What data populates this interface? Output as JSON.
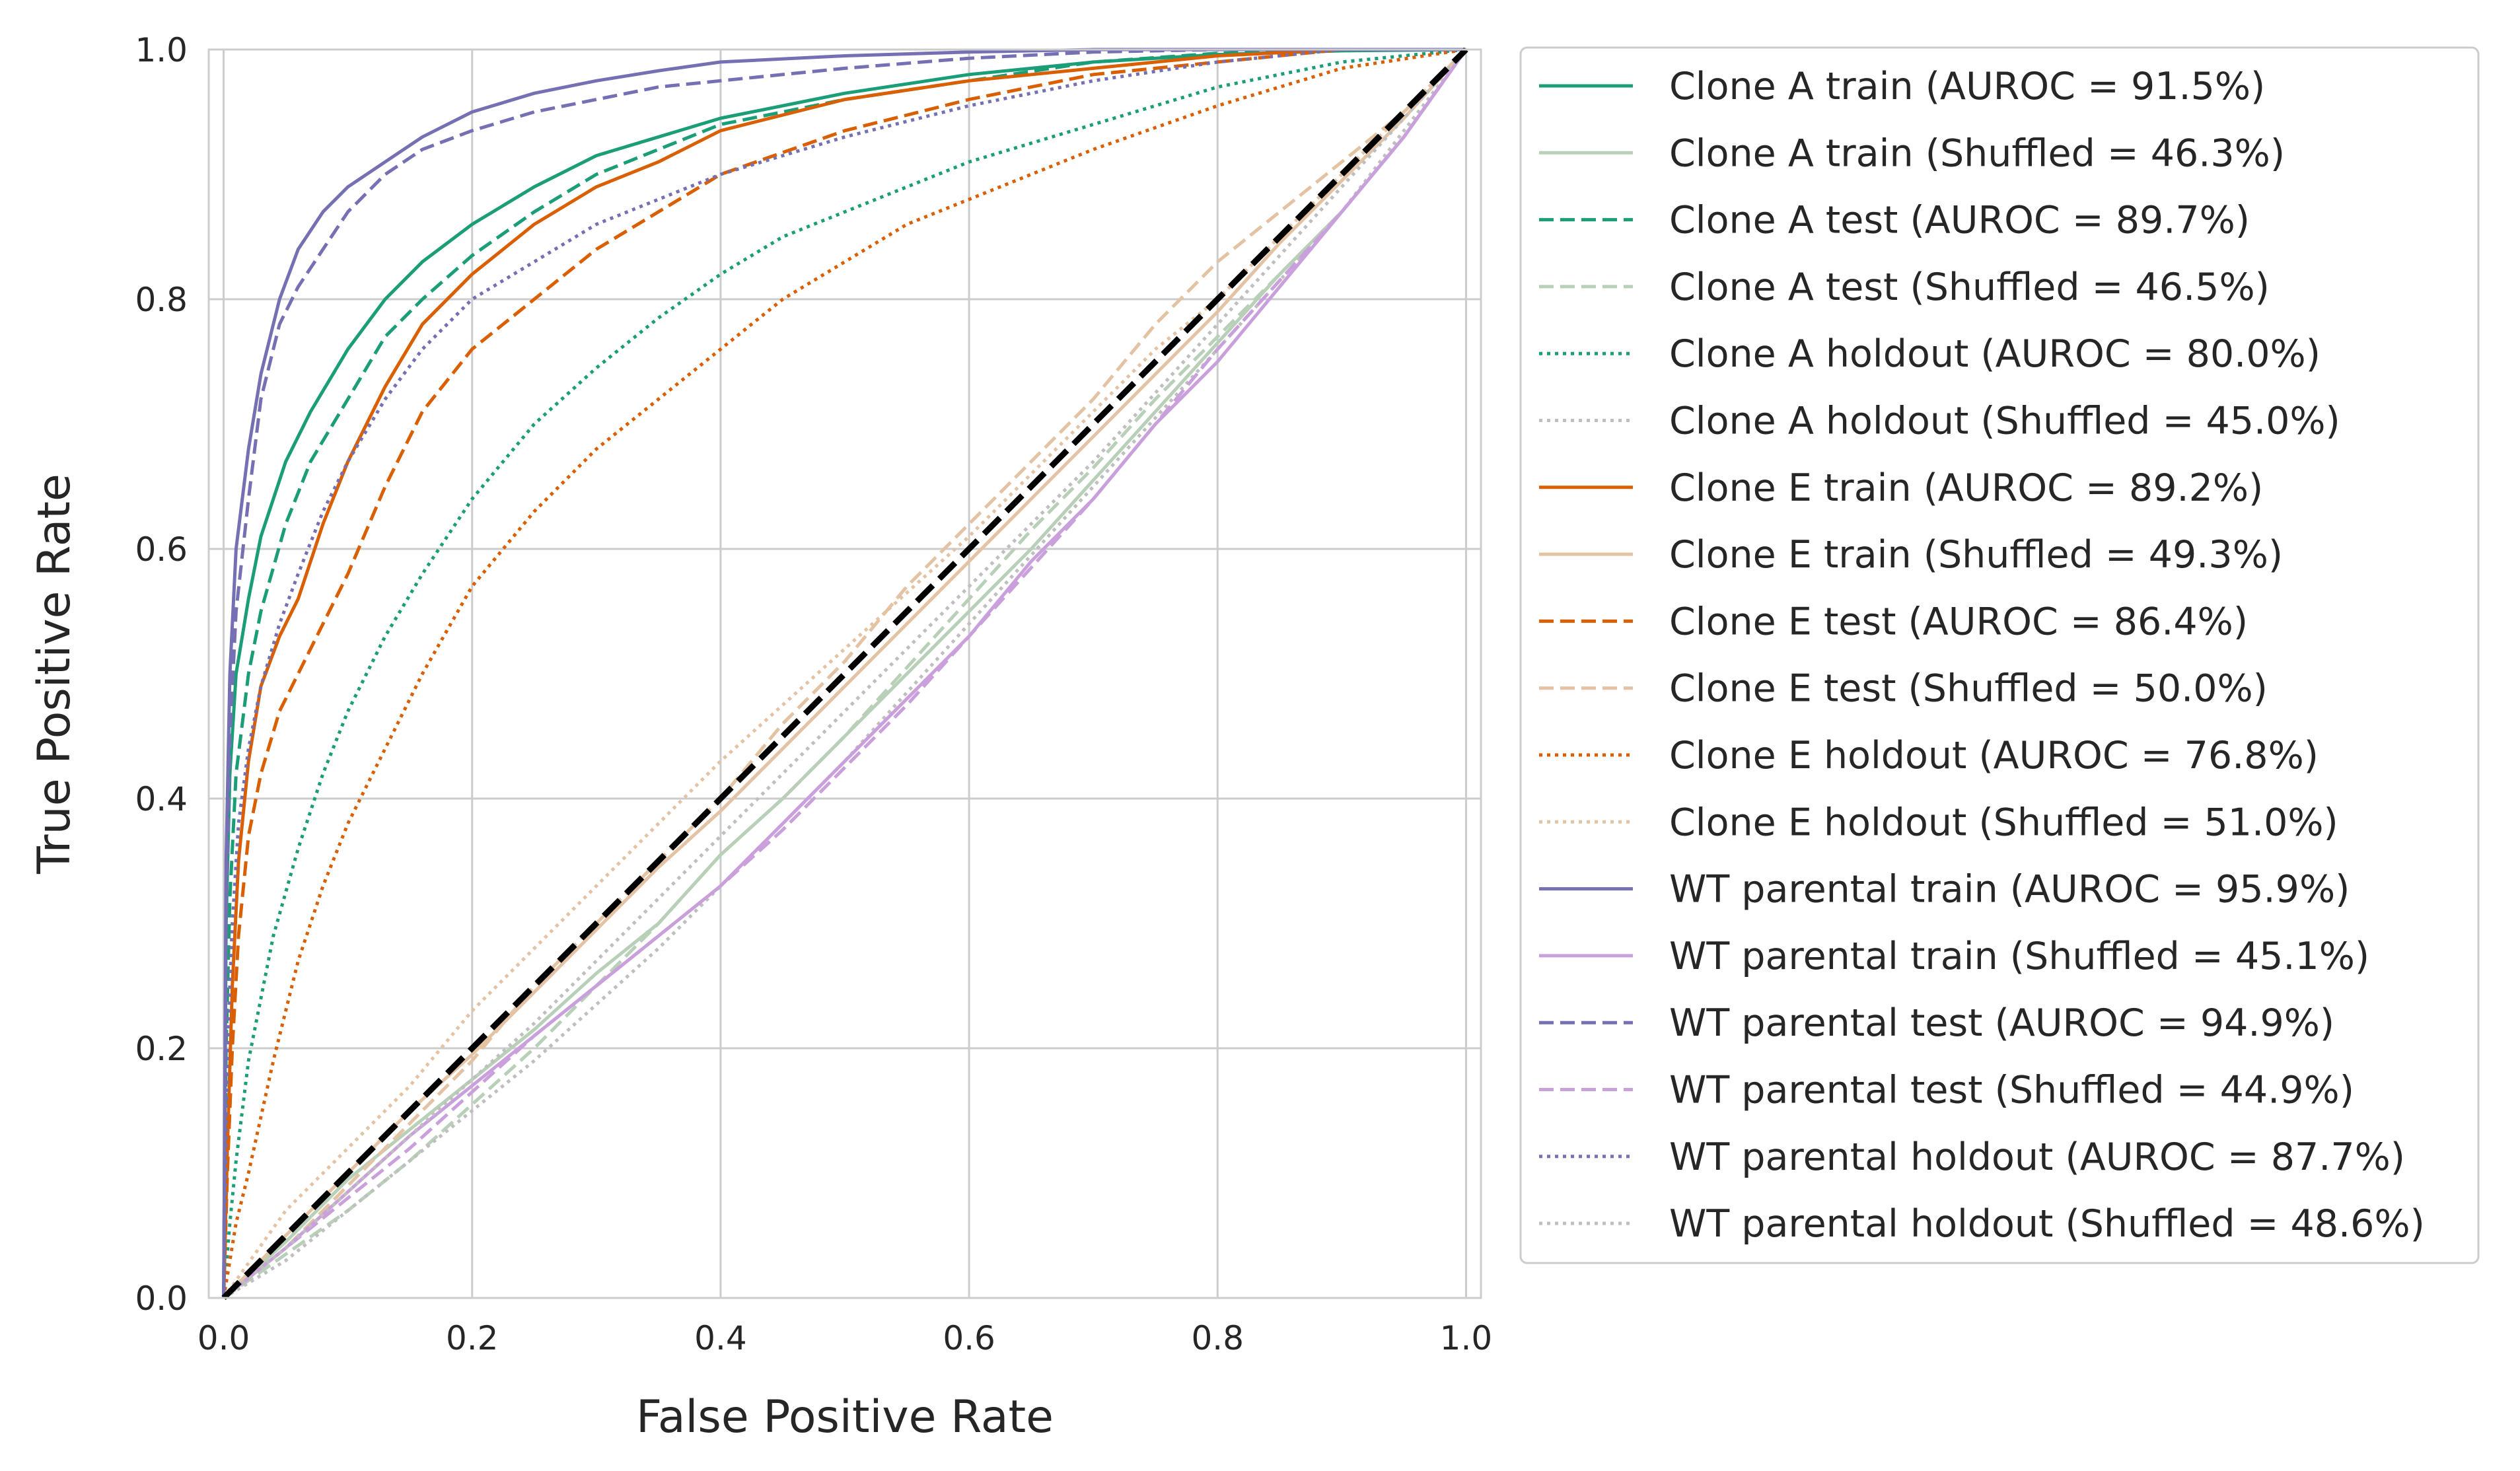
{
  "chart_data": {
    "type": "line",
    "title": "",
    "xlabel": "False Positive Rate",
    "ylabel": "True Positive Rate",
    "xlim": [
      0.0,
      1.0
    ],
    "ylim": [
      0.0,
      1.0
    ],
    "xticks": [
      "0.0",
      "0.2",
      "0.4",
      "0.6",
      "0.8",
      "1.0"
    ],
    "yticks": [
      "0.0",
      "0.2",
      "0.4",
      "0.6",
      "0.8",
      "1.0"
    ],
    "grid": true,
    "legend_position": "outside-right",
    "background": "#ffffff",
    "grid_color": "#cccccc",
    "diagonal": {
      "x": [
        0,
        1
      ],
      "y": [
        0,
        1
      ],
      "color": "#000000",
      "style": "dashed"
    },
    "series": [
      {
        "name": "Clone A train (AUROC = 91.5%)",
        "color": "#1b9e77",
        "style": "solid",
        "x": [
          0,
          0.002,
          0.005,
          0.01,
          0.02,
          0.03,
          0.05,
          0.07,
          0.1,
          0.13,
          0.16,
          0.2,
          0.25,
          0.3,
          0.35,
          0.4,
          0.5,
          0.6,
          0.7,
          0.8,
          0.9,
          1.0
        ],
        "y": [
          0,
          0.3,
          0.42,
          0.5,
          0.56,
          0.61,
          0.67,
          0.71,
          0.76,
          0.8,
          0.83,
          0.86,
          0.89,
          0.915,
          0.93,
          0.945,
          0.965,
          0.98,
          0.99,
          0.996,
          0.999,
          1.0
        ]
      },
      {
        "name": "Clone A train (Shuffled = 46.3%)",
        "color": "#b8cfb8",
        "style": "solid",
        "x": [
          0,
          0.05,
          0.1,
          0.15,
          0.2,
          0.25,
          0.3,
          0.35,
          0.4,
          0.45,
          0.5,
          0.55,
          0.6,
          0.65,
          0.7,
          0.75,
          0.8,
          0.85,
          0.9,
          0.95,
          1.0
        ],
        "y": [
          0,
          0.045,
          0.095,
          0.135,
          0.175,
          0.215,
          0.26,
          0.3,
          0.355,
          0.4,
          0.45,
          0.5,
          0.55,
          0.6,
          0.655,
          0.71,
          0.765,
          0.82,
          0.87,
          0.93,
          1.0
        ]
      },
      {
        "name": "Clone A test (AUROC = 89.7%)",
        "color": "#1b9e77",
        "style": "dashed",
        "x": [
          0,
          0.002,
          0.005,
          0.01,
          0.02,
          0.03,
          0.05,
          0.07,
          0.1,
          0.13,
          0.16,
          0.2,
          0.25,
          0.3,
          0.35,
          0.4,
          0.5,
          0.6,
          0.7,
          0.8,
          0.9,
          1.0
        ],
        "y": [
          0,
          0.2,
          0.32,
          0.42,
          0.5,
          0.55,
          0.62,
          0.67,
          0.72,
          0.77,
          0.8,
          0.835,
          0.87,
          0.9,
          0.92,
          0.94,
          0.96,
          0.975,
          0.99,
          0.997,
          1.0,
          1.0
        ]
      },
      {
        "name": "Clone A test (Shuffled = 46.5%)",
        "color": "#b8cfb8",
        "style": "dashed",
        "x": [
          0,
          0.05,
          0.1,
          0.15,
          0.2,
          0.25,
          0.3,
          0.35,
          0.4,
          0.45,
          0.5,
          0.55,
          0.6,
          0.65,
          0.7,
          0.75,
          0.8,
          0.85,
          0.9,
          0.95,
          1.0
        ],
        "y": [
          0,
          0.035,
          0.07,
          0.11,
          0.155,
          0.2,
          0.25,
          0.3,
          0.355,
          0.4,
          0.45,
          0.505,
          0.56,
          0.615,
          0.665,
          0.72,
          0.77,
          0.82,
          0.87,
          0.93,
          1.0
        ]
      },
      {
        "name": "Clone A holdout (AUROC = 80.0%)",
        "color": "#1b9e77",
        "style": "dotted",
        "x": [
          0,
          0.005,
          0.01,
          0.02,
          0.04,
          0.06,
          0.08,
          0.1,
          0.13,
          0.16,
          0.2,
          0.25,
          0.3,
          0.35,
          0.4,
          0.45,
          0.5,
          0.6,
          0.7,
          0.8,
          0.9,
          1.0
        ],
        "y": [
          0,
          0.06,
          0.11,
          0.19,
          0.29,
          0.36,
          0.42,
          0.47,
          0.53,
          0.58,
          0.64,
          0.7,
          0.745,
          0.785,
          0.82,
          0.85,
          0.87,
          0.91,
          0.94,
          0.97,
          0.99,
          1.0
        ]
      },
      {
        "name": "Clone A holdout (Shuffled = 45.0%)",
        "color": "#bfbfbf",
        "style": "dotted",
        "x": [
          0,
          0.05,
          0.1,
          0.15,
          0.2,
          0.25,
          0.3,
          0.35,
          0.4,
          0.45,
          0.5,
          0.55,
          0.6,
          0.65,
          0.7,
          0.75,
          0.8,
          0.85,
          0.9,
          0.95,
          1.0
        ],
        "y": [
          0,
          0.03,
          0.07,
          0.11,
          0.15,
          0.19,
          0.235,
          0.28,
          0.33,
          0.38,
          0.43,
          0.485,
          0.54,
          0.595,
          0.65,
          0.705,
          0.76,
          0.815,
          0.87,
          0.935,
          1.0
        ]
      },
      {
        "name": "Clone E train (AUROC = 89.2%)",
        "color": "#d95f02",
        "style": "solid",
        "x": [
          0,
          0.003,
          0.007,
          0.012,
          0.02,
          0.03,
          0.045,
          0.06,
          0.08,
          0.1,
          0.13,
          0.16,
          0.2,
          0.25,
          0.3,
          0.35,
          0.4,
          0.5,
          0.6,
          0.7,
          0.8,
          0.9,
          1.0
        ],
        "y": [
          0,
          0.12,
          0.25,
          0.35,
          0.43,
          0.49,
          0.53,
          0.56,
          0.62,
          0.67,
          0.73,
          0.78,
          0.82,
          0.86,
          0.89,
          0.91,
          0.935,
          0.96,
          0.975,
          0.985,
          0.995,
          1.0,
          1.0
        ]
      },
      {
        "name": "Clone E train (Shuffled = 49.3%)",
        "color": "#e3c3a3",
        "style": "solid",
        "x": [
          0,
          0.05,
          0.1,
          0.15,
          0.2,
          0.25,
          0.3,
          0.35,
          0.4,
          0.45,
          0.5,
          0.55,
          0.6,
          0.65,
          0.7,
          0.75,
          0.8,
          0.85,
          0.9,
          0.95,
          1.0
        ],
        "y": [
          0,
          0.05,
          0.1,
          0.15,
          0.195,
          0.245,
          0.295,
          0.345,
          0.39,
          0.44,
          0.49,
          0.54,
          0.59,
          0.64,
          0.69,
          0.74,
          0.79,
          0.845,
          0.895,
          0.945,
          1.0
        ]
      },
      {
        "name": "Clone E test (AUROC = 86.4%)",
        "color": "#d95f02",
        "style": "dashed",
        "x": [
          0,
          0.003,
          0.007,
          0.012,
          0.02,
          0.03,
          0.045,
          0.06,
          0.08,
          0.1,
          0.13,
          0.16,
          0.2,
          0.25,
          0.3,
          0.35,
          0.4,
          0.5,
          0.6,
          0.7,
          0.8,
          0.9,
          1.0
        ],
        "y": [
          0,
          0.1,
          0.2,
          0.29,
          0.37,
          0.42,
          0.47,
          0.5,
          0.54,
          0.58,
          0.65,
          0.71,
          0.76,
          0.8,
          0.84,
          0.87,
          0.9,
          0.935,
          0.96,
          0.98,
          0.99,
          1.0,
          1.0
        ]
      },
      {
        "name": "Clone E test (Shuffled = 50.0%)",
        "color": "#e3c3a3",
        "style": "dashed",
        "x": [
          0,
          0.05,
          0.1,
          0.15,
          0.2,
          0.25,
          0.3,
          0.35,
          0.4,
          0.45,
          0.5,
          0.55,
          0.6,
          0.65,
          0.7,
          0.75,
          0.8,
          0.85,
          0.9,
          0.95,
          1.0
        ],
        "y": [
          0,
          0.04,
          0.09,
          0.14,
          0.19,
          0.25,
          0.3,
          0.35,
          0.4,
          0.46,
          0.51,
          0.57,
          0.62,
          0.67,
          0.72,
          0.78,
          0.83,
          0.87,
          0.91,
          0.95,
          1.0
        ]
      },
      {
        "name": "Clone E holdout (AUROC = 76.8%)",
        "color": "#d95f02",
        "style": "dotted",
        "x": [
          0,
          0.01,
          0.02,
          0.04,
          0.06,
          0.08,
          0.1,
          0.13,
          0.16,
          0.2,
          0.25,
          0.3,
          0.35,
          0.4,
          0.45,
          0.5,
          0.55,
          0.6,
          0.7,
          0.8,
          0.9,
          1.0
        ],
        "y": [
          0,
          0.06,
          0.1,
          0.19,
          0.27,
          0.33,
          0.38,
          0.44,
          0.5,
          0.57,
          0.63,
          0.68,
          0.72,
          0.76,
          0.8,
          0.83,
          0.86,
          0.88,
          0.92,
          0.955,
          0.985,
          1.0
        ]
      },
      {
        "name": "Clone E holdout (Shuffled = 51.0%)",
        "color": "#e3c3a3",
        "style": "dotted",
        "x": [
          0,
          0.05,
          0.1,
          0.15,
          0.2,
          0.25,
          0.3,
          0.35,
          0.4,
          0.45,
          0.5,
          0.55,
          0.6,
          0.65,
          0.7,
          0.75,
          0.8,
          0.85,
          0.9,
          0.95,
          1.0
        ],
        "y": [
          0,
          0.07,
          0.12,
          0.17,
          0.23,
          0.28,
          0.33,
          0.38,
          0.43,
          0.475,
          0.52,
          0.565,
          0.61,
          0.66,
          0.71,
          0.76,
          0.8,
          0.85,
          0.9,
          0.95,
          1.0
        ]
      },
      {
        "name": "WT parental train (AUROC = 95.9%)",
        "color": "#7570b3",
        "style": "solid",
        "x": [
          0,
          0.002,
          0.005,
          0.01,
          0.02,
          0.03,
          0.045,
          0.06,
          0.08,
          0.1,
          0.13,
          0.16,
          0.2,
          0.25,
          0.3,
          0.35,
          0.4,
          0.5,
          0.6,
          0.7,
          0.8,
          0.9,
          1.0
        ],
        "y": [
          0,
          0.35,
          0.5,
          0.6,
          0.68,
          0.74,
          0.8,
          0.84,
          0.87,
          0.89,
          0.91,
          0.93,
          0.95,
          0.965,
          0.975,
          0.983,
          0.99,
          0.995,
          0.998,
          1.0,
          1.0,
          1.0,
          1.0
        ]
      },
      {
        "name": "WT parental train (Shuffled = 45.1%)",
        "color": "#c9a0dc",
        "style": "solid",
        "x": [
          0,
          0.05,
          0.1,
          0.15,
          0.2,
          0.25,
          0.3,
          0.35,
          0.4,
          0.45,
          0.5,
          0.55,
          0.6,
          0.65,
          0.7,
          0.75,
          0.8,
          0.85,
          0.9,
          0.95,
          1.0
        ],
        "y": [
          0,
          0.04,
          0.085,
          0.13,
          0.17,
          0.21,
          0.25,
          0.29,
          0.33,
          0.38,
          0.43,
          0.48,
          0.53,
          0.59,
          0.64,
          0.7,
          0.75,
          0.81,
          0.87,
          0.93,
          1.0
        ]
      },
      {
        "name": "WT parental test (AUROC = 94.9%)",
        "color": "#7570b3",
        "style": "dashed",
        "x": [
          0,
          0.002,
          0.005,
          0.01,
          0.02,
          0.03,
          0.045,
          0.06,
          0.08,
          0.1,
          0.13,
          0.16,
          0.2,
          0.25,
          0.3,
          0.35,
          0.4,
          0.5,
          0.6,
          0.7,
          0.8,
          0.9,
          1.0
        ],
        "y": [
          0,
          0.3,
          0.45,
          0.55,
          0.64,
          0.72,
          0.78,
          0.81,
          0.84,
          0.87,
          0.9,
          0.92,
          0.935,
          0.95,
          0.96,
          0.97,
          0.975,
          0.985,
          0.993,
          0.998,
          1.0,
          1.0,
          1.0
        ]
      },
      {
        "name": "WT parental test (Shuffled = 44.9%)",
        "color": "#c9a0dc",
        "style": "dashed",
        "x": [
          0,
          0.05,
          0.1,
          0.15,
          0.2,
          0.25,
          0.3,
          0.35,
          0.4,
          0.45,
          0.5,
          0.55,
          0.6,
          0.65,
          0.7,
          0.75,
          0.8,
          0.85,
          0.9,
          0.95,
          1.0
        ],
        "y": [
          0,
          0.04,
          0.08,
          0.12,
          0.165,
          0.21,
          0.25,
          0.29,
          0.33,
          0.375,
          0.425,
          0.475,
          0.53,
          0.585,
          0.64,
          0.7,
          0.76,
          0.815,
          0.87,
          0.93,
          1.0
        ]
      },
      {
        "name": "WT parental holdout (AUROC = 87.7%)",
        "color": "#7570b3",
        "style": "dotted",
        "x": [
          0,
          0.003,
          0.007,
          0.012,
          0.02,
          0.03,
          0.045,
          0.06,
          0.08,
          0.1,
          0.13,
          0.16,
          0.2,
          0.25,
          0.3,
          0.35,
          0.4,
          0.5,
          0.6,
          0.7,
          0.8,
          0.9,
          1.0
        ],
        "y": [
          0,
          0.2,
          0.3,
          0.38,
          0.44,
          0.49,
          0.54,
          0.58,
          0.63,
          0.67,
          0.72,
          0.76,
          0.8,
          0.83,
          0.86,
          0.88,
          0.9,
          0.93,
          0.955,
          0.975,
          0.99,
          1.0,
          1.0
        ]
      },
      {
        "name": "WT parental holdout (Shuffled = 48.6%)",
        "color": "#bfbfbf",
        "style": "dotted",
        "x": [
          0,
          0.05,
          0.1,
          0.15,
          0.2,
          0.25,
          0.3,
          0.35,
          0.4,
          0.45,
          0.5,
          0.55,
          0.6,
          0.65,
          0.7,
          0.75,
          0.8,
          0.85,
          0.9,
          0.95,
          1.0
        ],
        "y": [
          0,
          0.04,
          0.085,
          0.13,
          0.175,
          0.22,
          0.27,
          0.32,
          0.37,
          0.42,
          0.47,
          0.52,
          0.57,
          0.62,
          0.67,
          0.725,
          0.78,
          0.835,
          0.89,
          0.945,
          1.0
        ]
      }
    ]
  }
}
